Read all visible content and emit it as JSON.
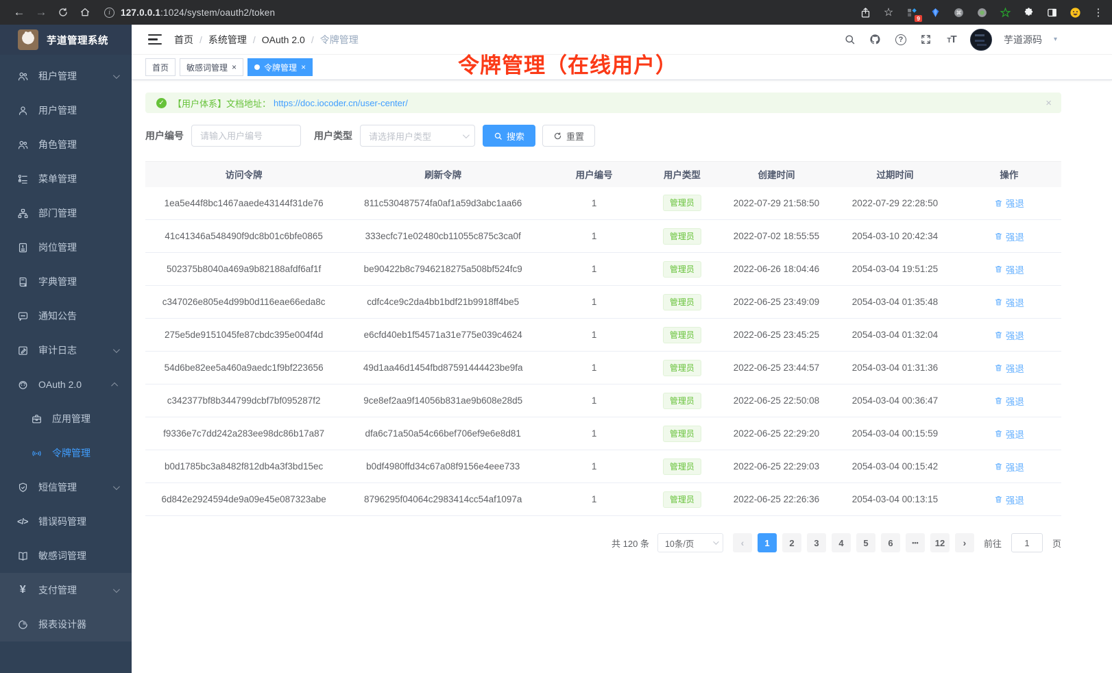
{
  "browser": {
    "nav_icons": [
      "back",
      "forward",
      "reload",
      "home"
    ],
    "url": {
      "host": "127.0.0.1",
      "path": ":1024/system/oauth2/token"
    },
    "action_icons": [
      "share",
      "bookmark-star"
    ],
    "extensions": [
      {
        "icon": "extension-badged",
        "badge": "9"
      },
      {
        "icon": "blue-gem"
      },
      {
        "icon": "command-circle"
      },
      {
        "icon": "record-circle"
      },
      {
        "icon": "green-star"
      },
      {
        "icon": "puzzle"
      },
      {
        "icon": "side-panel"
      },
      {
        "icon": "emoji-avatar"
      }
    ],
    "menu_icon": "kebab-menu"
  },
  "sidebar": {
    "app_title": "芋道管理系统",
    "items": [
      {
        "id": "tenant",
        "icon": "users",
        "label": "租户管理",
        "arrow": "down"
      },
      {
        "id": "user",
        "icon": "user",
        "label": "用户管理"
      },
      {
        "id": "role",
        "icon": "users",
        "label": "角色管理"
      },
      {
        "id": "menu",
        "icon": "menu",
        "label": "菜单管理"
      },
      {
        "id": "dept",
        "icon": "tree",
        "label": "部门管理"
      },
      {
        "id": "post",
        "icon": "badge",
        "label": "岗位管理"
      },
      {
        "id": "dict",
        "icon": "dict",
        "label": "字典管理"
      },
      {
        "id": "notice",
        "icon": "message",
        "label": "通知公告"
      },
      {
        "id": "audit",
        "icon": "edit",
        "label": "审计日志",
        "arrow": "down"
      },
      {
        "id": "oauth",
        "icon": "robot",
        "label": "OAuth 2.0",
        "arrow": "up"
      },
      {
        "id": "oauth-app",
        "icon": "briefcase",
        "label": "应用管理",
        "child": true
      },
      {
        "id": "token",
        "icon": "signal",
        "label": "令牌管理",
        "child": true,
        "active": true
      },
      {
        "id": "sms",
        "icon": "shield",
        "label": "短信管理",
        "arrow": "down"
      },
      {
        "id": "errcode",
        "icon": "code",
        "label": "错误码管理"
      },
      {
        "id": "sensitive",
        "icon": "book",
        "label": "敏感词管理"
      },
      {
        "id": "pay",
        "icon": "yen",
        "label": "支付管理",
        "arrow": "down",
        "shaded": true
      },
      {
        "id": "report",
        "icon": "pie",
        "label": "报表设计器",
        "shaded": true
      }
    ]
  },
  "header": {
    "breadcrumb": [
      "首页",
      "系统管理",
      "OAuth 2.0",
      "令牌管理"
    ],
    "icons": [
      "search",
      "github",
      "help",
      "fullscreen",
      "font-size"
    ],
    "username": "芋道源码"
  },
  "tabs": [
    {
      "label": "首页",
      "closable": false,
      "active": false
    },
    {
      "label": "敏感词管理",
      "closable": true,
      "active": false
    },
    {
      "label": "令牌管理",
      "closable": true,
      "active": true
    }
  ],
  "annotation": {
    "text": "令牌管理（在线用户）",
    "color": "#fb3a17"
  },
  "alert": {
    "message": "【用户体系】文档地址：",
    "link": "https://doc.iocoder.cn/user-center/",
    "close_icon": "close-icon"
  },
  "filters": {
    "user_id_label": "用户编号",
    "user_id_placeholder": "请输入用户编号",
    "user_type_label": "用户类型",
    "user_type_placeholder": "请选择用户类型",
    "search_label": "搜索",
    "reset_label": "重置"
  },
  "table": {
    "columns": [
      "访问令牌",
      "刷新令牌",
      "用户编号",
      "用户类型",
      "创建时间",
      "过期时间",
      "操作"
    ],
    "rows": [
      {
        "access": "1ea5e44f8bc1467aaede43144f31de76",
        "refresh": "811c530487574fa0af1a59d3abc1aa66",
        "user_id": "1",
        "user_type": "管理员",
        "created": "2022-07-29 21:58:50",
        "expires": "2022-07-29 22:28:50",
        "action": "强退"
      },
      {
        "access": "41c41346a548490f9dc8b01c6bfe0865",
        "refresh": "333ecfc71e02480cb11055c875c3ca0f",
        "user_id": "1",
        "user_type": "管理员",
        "created": "2022-07-02 18:55:55",
        "expires": "2054-03-10 20:42:34",
        "action": "强退"
      },
      {
        "access": "502375b8040a469a9b82188afdf6af1f",
        "refresh": "be90422b8c7946218275a508bf524fc9",
        "user_id": "1",
        "user_type": "管理员",
        "created": "2022-06-26 18:04:46",
        "expires": "2054-03-04 19:51:25",
        "action": "强退"
      },
      {
        "access": "c347026e805e4d99b0d116eae66eda8c",
        "refresh": "cdfc4ce9c2da4bb1bdf21b9918ff4be5",
        "user_id": "1",
        "user_type": "管理员",
        "created": "2022-06-25 23:49:09",
        "expires": "2054-03-04 01:35:48",
        "action": "强退"
      },
      {
        "access": "275e5de9151045fe87cbdc395e004f4d",
        "refresh": "e6cfd40eb1f54571a31e775e039c4624",
        "user_id": "1",
        "user_type": "管理员",
        "created": "2022-06-25 23:45:25",
        "expires": "2054-03-04 01:32:04",
        "action": "强退"
      },
      {
        "access": "54d6be82ee5a460a9aedc1f9bf223656",
        "refresh": "49d1aa46d1454fbd87591444423be9fa",
        "user_id": "1",
        "user_type": "管理员",
        "created": "2022-06-25 23:44:57",
        "expires": "2054-03-04 01:31:36",
        "action": "强退"
      },
      {
        "access": "c342377bf8b344799dcbf7bf095287f2",
        "refresh": "9ce8ef2aa9f14056b831ae9b608e28d5",
        "user_id": "1",
        "user_type": "管理员",
        "created": "2022-06-25 22:50:08",
        "expires": "2054-03-04 00:36:47",
        "action": "强退"
      },
      {
        "access": "f9336e7c7dd242a283ee98dc86b17a87",
        "refresh": "dfa6c71a50a54c66bef706ef9e6e8d81",
        "user_id": "1",
        "user_type": "管理员",
        "created": "2022-06-25 22:29:20",
        "expires": "2054-03-04 00:15:59",
        "action": "强退"
      },
      {
        "access": "b0d1785bc3a8482f812db4a3f3bd15ec",
        "refresh": "b0df4980ffd34c67a08f9156e4eee733",
        "user_id": "1",
        "user_type": "管理员",
        "created": "2022-06-25 22:29:03",
        "expires": "2054-03-04 00:15:42",
        "action": "强退"
      },
      {
        "access": "6d842e2924594de9a09e45e087323abe",
        "refresh": "8796295f04064c2983414cc54af1097a",
        "user_id": "1",
        "user_type": "管理员",
        "created": "2022-06-25 22:26:36",
        "expires": "2054-03-04 00:13:15",
        "action": "强退"
      }
    ]
  },
  "pagination": {
    "total_label": "共 120 条",
    "page_size": "10条/页",
    "pages": [
      "1",
      "2",
      "3",
      "4",
      "5",
      "6",
      "...",
      "12"
    ],
    "active_page": "1",
    "goto_label": "前往",
    "goto_value": "1",
    "page_suffix": "页"
  },
  "colors": {
    "accent": "#409eff",
    "success": "#67c23a",
    "sidebar_bg": "#304156",
    "annotation_red": "#fb3a17"
  }
}
